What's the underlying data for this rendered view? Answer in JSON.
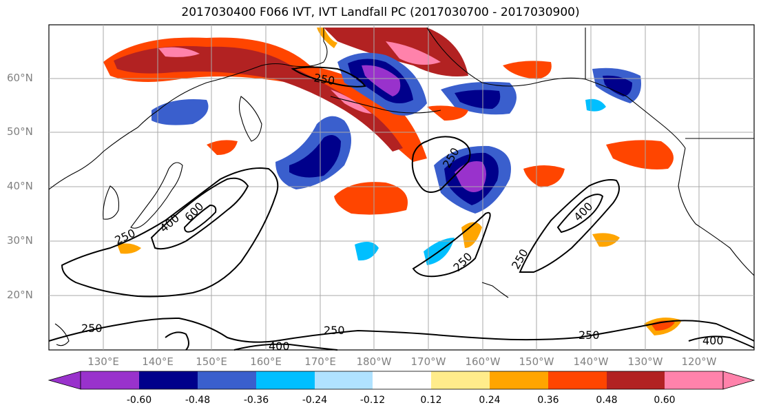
{
  "title": "2017030400 F066 IVT, IVT Landfall PC (2017030700 - 2017030900)",
  "lat_labels": [
    "60°N",
    "50°N",
    "40°N",
    "30°N",
    "20°N"
  ],
  "lon_labels": [
    "130°E",
    "140°E",
    "150°E",
    "160°E",
    "170°E",
    "180°W",
    "170°W",
    "160°W",
    "150°W",
    "140°W",
    "130°W",
    "120°W"
  ],
  "colorbar": {
    "colors": [
      "#9932CC",
      "#00008B",
      "#3A5FCD",
      "#00BFFF",
      "#B0E2FF",
      "#FFFFFF",
      "#FFEC8B",
      "#FFA500",
      "#FF4500",
      "#B22222",
      "#FF82AB"
    ],
    "tick_labels": [
      "-0.60",
      "-0.48",
      "-0.36",
      "-0.24",
      "-0.12",
      "0.12",
      "0.24",
      "0.36",
      "0.48",
      "0.60"
    ]
  },
  "contour_labels": [
    "250",
    "400",
    "600",
    "250",
    "250",
    "250",
    "400",
    "250",
    "250",
    "400",
    "250",
    "250",
    "400"
  ],
  "contour_color": "#000000",
  "coastline_color": "#000000",
  "grid_color": "#A9A9A9"
}
